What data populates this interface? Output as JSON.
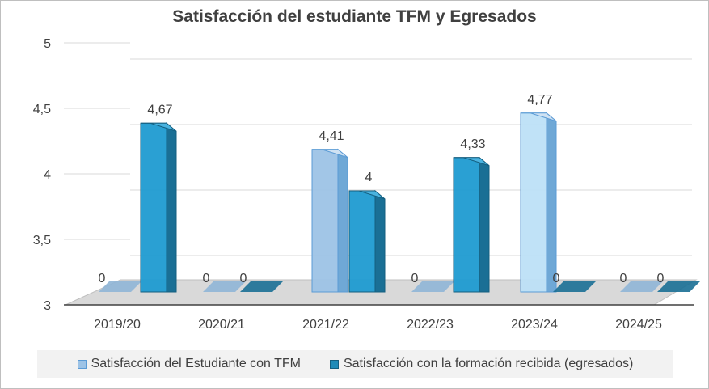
{
  "chart_data": {
    "type": "bar",
    "title": "Satisfacción del estudiante TFM y Egresados",
    "categories": [
      "2019/20",
      "2020/21",
      "2021/22",
      "2022/23",
      "2023/24",
      "2024/25"
    ],
    "series": [
      {
        "name": "Satisfacción del Estudiante con TFM",
        "values": [
          0,
          0,
          4.41,
          0,
          4.77,
          0
        ],
        "value_labels": [
          "0",
          "0",
          "4,41",
          "0",
          "4,77",
          "0"
        ],
        "color": "#9dc3e6"
      },
      {
        "name": "Satisfacción con la formación recibida (egresados)",
        "values": [
          4.67,
          0,
          4,
          4.33,
          0,
          0
        ],
        "value_labels": [
          "4,67",
          "0",
          "4",
          "4,33",
          "0",
          "0"
        ],
        "color": "#1f8bb8"
      }
    ],
    "y_ticks": [
      {
        "value": 3,
        "label": "3"
      },
      {
        "value": 3.5,
        "label": "3,5"
      },
      {
        "value": 4,
        "label": "4"
      },
      {
        "value": 4.5,
        "label": "4,5"
      },
      {
        "value": 5,
        "label": "5"
      }
    ],
    "ylim": [
      3,
      5
    ],
    "grid": true,
    "style": "3d-clustered-column",
    "legend_position": "bottom"
  },
  "colors": {
    "floor": "#d9d9d9",
    "grid": "#d9d9d9",
    "series1_front": "#9dc3e6",
    "series1_side": "#6fa8d6",
    "series1_top": "#cfe2f3",
    "series1_highlight_front": "#bde0f7",
    "series2_front": "#1f9bd1",
    "series2_side": "#1a6f95",
    "series2_top": "#4ab3e0",
    "series2_dark_front": "#1a84ad",
    "series2_dark_side": "#145f80"
  }
}
